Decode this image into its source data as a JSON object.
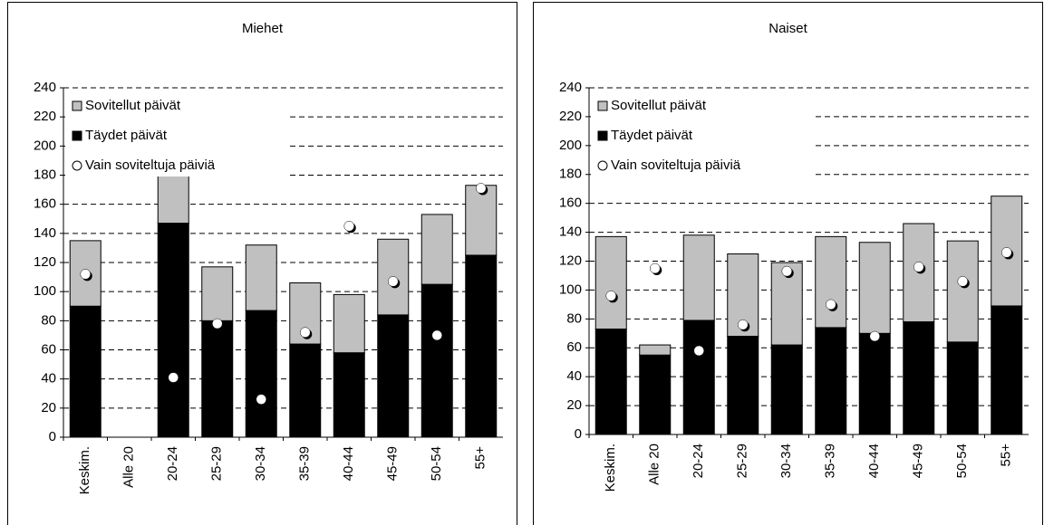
{
  "chart_data": [
    {
      "type": "bar",
      "stacked": true,
      "title": "Miehet",
      "categories": [
        "Keskim.",
        "Alle 20",
        "20-24",
        "25-29",
        "30-34",
        "35-39",
        "40-44",
        "45-49",
        "50-54",
        "55+"
      ],
      "series": [
        {
          "name": "Täydet päivät",
          "color": "#000000",
          "type": "bar",
          "values": [
            90,
            0,
            147,
            80,
            87,
            64,
            58,
            84,
            105,
            125
          ]
        },
        {
          "name": "Sovitellut päivät",
          "color": "#c0c0c0",
          "type": "bar",
          "values": [
            45,
            0,
            44,
            37,
            45,
            42,
            40,
            52,
            48,
            48
          ]
        },
        {
          "name": "Vain soviteltuja päiviä",
          "color": "#ffffff",
          "type": "scatter",
          "values": [
            112,
            null,
            41,
            78,
            26,
            72,
            145,
            107,
            70,
            171
          ]
        }
      ],
      "ylim": [
        0,
        240
      ],
      "yticks": [
        0,
        20,
        40,
        60,
        80,
        100,
        120,
        140,
        160,
        180,
        200,
        220,
        240
      ],
      "grid": true,
      "legend": "top-left"
    },
    {
      "type": "bar",
      "stacked": true,
      "title": "Naiset",
      "categories": [
        "Keskim.",
        "Alle 20",
        "20-24",
        "25-29",
        "30-34",
        "35-39",
        "40-44",
        "45-49",
        "50-54",
        "55+"
      ],
      "series": [
        {
          "name": "Täydet päivät",
          "color": "#000000",
          "type": "bar",
          "values": [
            73,
            55,
            79,
            68,
            62,
            74,
            70,
            78,
            64,
            89
          ]
        },
        {
          "name": "Sovitellut päivät",
          "color": "#c0c0c0",
          "type": "bar",
          "values": [
            64,
            7,
            59,
            57,
            57,
            63,
            63,
            68,
            70,
            76
          ]
        },
        {
          "name": "Vain soviteltuja päiviä",
          "color": "#ffffff",
          "type": "scatter",
          "values": [
            96,
            115,
            58,
            76,
            113,
            90,
            68,
            116,
            106,
            126
          ]
        }
      ],
      "ylim": [
        0,
        240
      ],
      "yticks": [
        0,
        20,
        40,
        60,
        80,
        100,
        120,
        140,
        160,
        180,
        200,
        220,
        240
      ],
      "grid": true,
      "legend": "top-left"
    }
  ]
}
